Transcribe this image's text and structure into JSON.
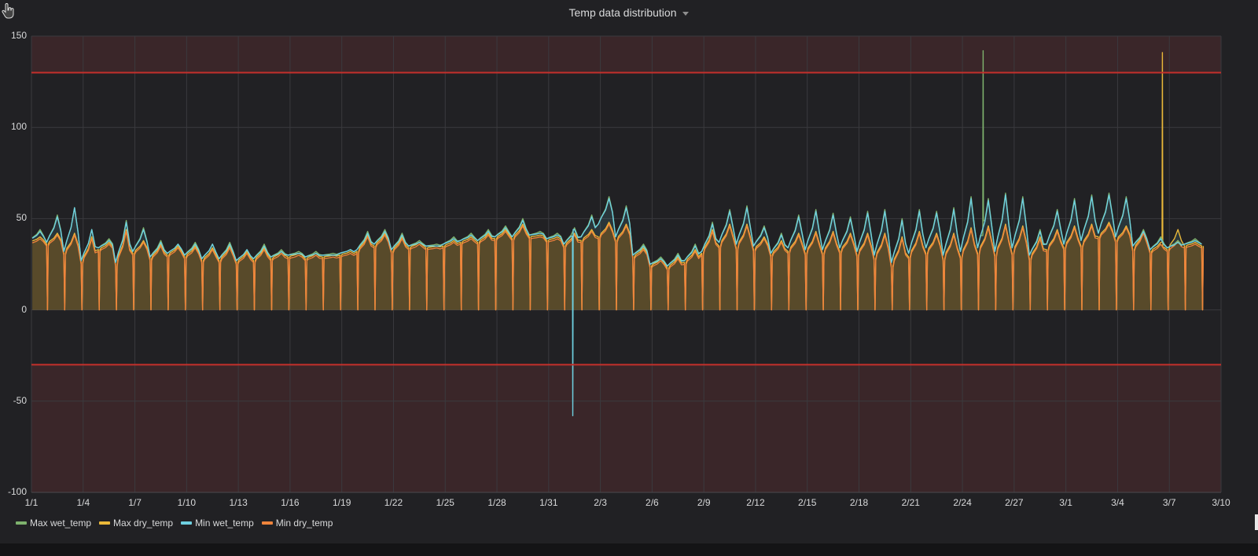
{
  "panel": {
    "title": "Temp data distribution",
    "menu_icon": "caret-down-icon"
  },
  "colors": {
    "background": "#212124",
    "grid": "#3a3a3e",
    "threshold_line": "#c4302b",
    "threshold_fill": "rgba(150,60,60,0.22)",
    "max_wet": "#7eb26d",
    "max_dry": "#eab839",
    "min_wet": "#6ed0e0",
    "min_dry": "#ef843c",
    "area_fill": "rgba(234,184,57,0.28)"
  },
  "chart_data": {
    "type": "line",
    "title": "Temp data distribution",
    "xlabel": "",
    "ylabel": "",
    "ylim": [
      -100,
      150
    ],
    "yticks": [
      "150",
      "100",
      "50",
      "0",
      "-50",
      "-100"
    ],
    "xticks": [
      "1/1",
      "1/4",
      "1/7",
      "1/10",
      "1/13",
      "1/16",
      "1/19",
      "1/22",
      "1/25",
      "1/28",
      "1/31",
      "2/3",
      "2/6",
      "2/9",
      "2/12",
      "2/15",
      "2/18",
      "2/21",
      "2/24",
      "2/27",
      "3/1",
      "3/4",
      "3/7",
      "3/10"
    ],
    "grid": true,
    "legend_position": "bottom-left",
    "thresholds": [
      {
        "value": 130,
        "direction": "above",
        "color": "#c4302b"
      },
      {
        "value": -30,
        "direction": "below",
        "color": "#c4302b"
      }
    ],
    "x_start": "1/1",
    "x_end": "3/9",
    "days": 68,
    "series": [
      {
        "name": "Max wet_temp",
        "color": "#7eb26d",
        "daily_peak": [
          44,
          52,
          56,
          44,
          39,
          49,
          45,
          38,
          36,
          37,
          36,
          37,
          33,
          36,
          33,
          32,
          32,
          31,
          33,
          43,
          44,
          42,
          38,
          36,
          40,
          42,
          44,
          46,
          50,
          43,
          42,
          45,
          52,
          62,
          57,
          36,
          29,
          31,
          36,
          48,
          55,
          57,
          46,
          42,
          52,
          55,
          53,
          51,
          54,
          55,
          50,
          55,
          54,
          56,
          62,
          61,
          64,
          62,
          44,
          55,
          61,
          63,
          64,
          62,
          44,
          40,
          38,
          39
        ],
        "daily_trough": [
          38,
          37,
          32,
          27,
          34,
          26,
          32,
          29,
          31,
          30,
          28,
          28,
          27,
          28,
          29,
          30,
          29,
          30,
          31,
          33,
          36,
          33,
          35,
          35,
          36,
          38,
          38,
          40,
          40,
          41,
          39,
          36,
          40,
          47,
          40,
          30,
          25,
          24,
          27,
          32,
          37,
          36,
          35,
          31,
          34,
          33,
          33,
          34,
          32,
          30,
          26,
          31,
          34,
          30,
          32,
          34,
          32,
          34,
          30,
          36,
          36,
          38,
          42,
          40,
          35,
          33,
          34,
          36
        ],
        "spikes": [
          {
            "day": 55.2,
            "value": 142
          }
        ]
      },
      {
        "name": "Max dry_temp",
        "color": "#eab839",
        "daily_peak": [
          40,
          42,
          42,
          40,
          37,
          44,
          38,
          36,
          35,
          35,
          34,
          35,
          32,
          34,
          32,
          31,
          31,
          30,
          32,
          41,
          42,
          40,
          37,
          35,
          38,
          40,
          42,
          44,
          47,
          41,
          40,
          42,
          44,
          48,
          47,
          34,
          28,
          29,
          33,
          44,
          47,
          47,
          40,
          38,
          42,
          43,
          43,
          42,
          42,
          42,
          40,
          43,
          42,
          42,
          45,
          46,
          47,
          46,
          40,
          44,
          46,
          47,
          48,
          46,
          43,
          37,
          44,
          37
        ],
        "daily_trough": [
          37,
          36,
          31,
          26,
          33,
          25,
          31,
          28,
          30,
          29,
          27,
          27,
          26,
          27,
          28,
          29,
          28,
          29,
          30,
          32,
          35,
          32,
          34,
          34,
          35,
          37,
          37,
          39,
          39,
          40,
          38,
          35,
          38,
          40,
          38,
          29,
          24,
          23,
          26,
          31,
          35,
          34,
          33,
          30,
          32,
          31,
          31,
          32,
          30,
          28,
          24,
          29,
          31,
          28,
          29,
          31,
          30,
          31,
          28,
          33,
          34,
          35,
          40,
          38,
          33,
          32,
          33,
          35
        ],
        "spikes": [
          {
            "day": 65.6,
            "value": 141
          }
        ]
      },
      {
        "name": "Min wet_temp",
        "color": "#6ed0e0",
        "daily_peak": [
          43,
          51,
          56,
          44,
          38,
          48,
          44,
          37,
          36,
          36,
          36,
          36,
          33,
          35,
          32,
          31,
          31,
          30,
          33,
          42,
          43,
          41,
          37,
          35,
          39,
          41,
          43,
          45,
          49,
          42,
          41,
          44,
          51,
          61,
          56,
          35,
          28,
          30,
          35,
          47,
          54,
          56,
          45,
          41,
          51,
          54,
          52,
          50,
          53,
          54,
          49,
          54,
          53,
          55,
          61,
          60,
          63,
          61,
          43,
          54,
          60,
          62,
          63,
          61,
          43,
          39,
          37,
          38
        ],
        "daily_trough": [
          38,
          37,
          32,
          27,
          34,
          26,
          32,
          29,
          31,
          30,
          28,
          28,
          27,
          28,
          29,
          30,
          29,
          30,
          31,
          33,
          36,
          33,
          35,
          35,
          36,
          38,
          38,
          40,
          40,
          41,
          39,
          36,
          40,
          47,
          40,
          30,
          25,
          24,
          27,
          32,
          37,
          36,
          35,
          31,
          34,
          33,
          33,
          34,
          32,
          30,
          26,
          31,
          34,
          30,
          32,
          34,
          32,
          34,
          30,
          36,
          36,
          38,
          42,
          40,
          35,
          33,
          34,
          36
        ],
        "spikes": [
          {
            "day": 31.4,
            "value": -58
          }
        ]
      },
      {
        "name": "Min dry_temp",
        "color": "#ef843c",
        "daily_peak": [
          39,
          41,
          41,
          39,
          36,
          43,
          37,
          35,
          34,
          34,
          33,
          34,
          31,
          33,
          31,
          30,
          30,
          29,
          31,
          40,
          41,
          39,
          36,
          34,
          37,
          39,
          41,
          43,
          46,
          40,
          39,
          41,
          43,
          47,
          46,
          33,
          27,
          28,
          32,
          43,
          46,
          46,
          39,
          37,
          41,
          42,
          42,
          41,
          41,
          41,
          39,
          42,
          41,
          41,
          44,
          45,
          46,
          45,
          39,
          43,
          45,
          46,
          47,
          45,
          42,
          36,
          38,
          36
        ],
        "daily_trough": [
          36,
          35,
          30,
          25,
          32,
          24,
          30,
          27,
          29,
          28,
          26,
          26,
          25,
          26,
          27,
          28,
          27,
          28,
          29,
          31,
          34,
          31,
          33,
          33,
          34,
          36,
          36,
          38,
          38,
          39,
          37,
          34,
          37,
          39,
          37,
          28,
          23,
          22,
          25,
          30,
          34,
          33,
          32,
          29,
          31,
          30,
          30,
          31,
          29,
          27,
          23,
          28,
          30,
          27,
          28,
          30,
          29,
          30,
          27,
          32,
          33,
          34,
          39,
          37,
          32,
          31,
          32,
          34
        ],
        "daily_drop_to": 0,
        "spikes": []
      }
    ]
  },
  "legend": {
    "items": [
      {
        "label": "Max wet_temp",
        "color": "#7eb26d"
      },
      {
        "label": "Max dry_temp",
        "color": "#eab839"
      },
      {
        "label": "Min wet_temp",
        "color": "#6ed0e0"
      },
      {
        "label": "Min dry_temp",
        "color": "#ef843c"
      }
    ]
  }
}
